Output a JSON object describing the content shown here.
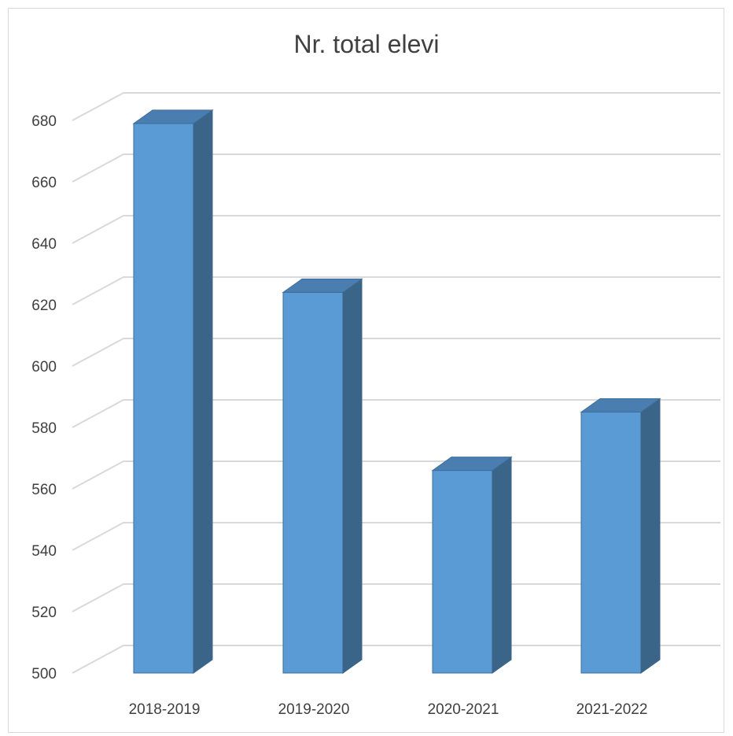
{
  "chart_data": {
    "type": "bar",
    "style": "3d-column",
    "title": "Nr. total elevi",
    "xlabel": "",
    "ylabel": "",
    "categories": [
      "2018-2019",
      "2019-2020",
      "2020-2021",
      "2021-2022"
    ],
    "series": [
      {
        "values": [
          679,
          624,
          566,
          585
        ]
      }
    ],
    "ylim": [
      500,
      680
    ],
    "yticks": [
      500,
      520,
      540,
      560,
      580,
      600,
      620,
      640,
      660,
      680
    ],
    "grid": true,
    "legend": "none",
    "colors": {
      "bar_front": "#5b9bd5",
      "bar_side": "#3a6588",
      "bar_top": "#4a7eb0",
      "bar_edge": "#3d6d99",
      "grid": "#d9d9d9",
      "text": "#404040"
    }
  }
}
